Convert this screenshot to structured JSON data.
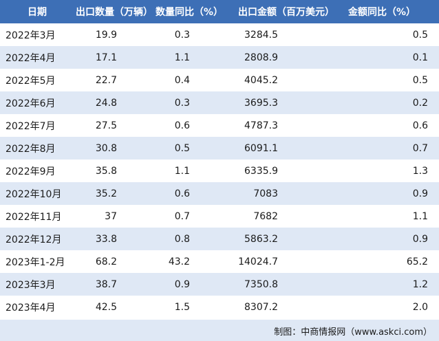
{
  "header": [
    "日期",
    "出口数量（万辆）",
    "数量同比（%）",
    "出口金额（百万美元）",
    "金额同比（%）"
  ],
  "rows": [
    [
      "2022年3月",
      "19.9",
      "0.3",
      "3284.5",
      "0.5"
    ],
    [
      "2022年4月",
      "17.1",
      "1.1",
      "2808.9",
      "0.1"
    ],
    [
      "2022年5月",
      "22.7",
      "0.4",
      "4045.2",
      "0.5"
    ],
    [
      "2022年6月",
      "24.8",
      "0.3",
      "3695.3",
      "0.2"
    ],
    [
      "2022年7月",
      "27.5",
      "0.6",
      "4787.3",
      "0.6"
    ],
    [
      "2022年8月",
      "30.8",
      "0.5",
      "6091.1",
      "0.7"
    ],
    [
      "2022年9月",
      "35.8",
      "1.1",
      "6335.9",
      "1.3"
    ],
    [
      "2022年10月",
      "35.2",
      "0.6",
      "7083",
      "0.9"
    ],
    [
      "2022年11月",
      "37",
      "0.7",
      "7682",
      "1.1"
    ],
    [
      "2022年12月",
      "33.8",
      "0.8",
      "5863.2",
      "0.9"
    ],
    [
      "2023年1-2月",
      "68.2",
      "43.2",
      "14024.7",
      "65.2"
    ],
    [
      "2023年3月",
      "38.7",
      "0.9",
      "7350.8",
      "1.2"
    ],
    [
      "2023年4月",
      "42.5",
      "1.5",
      "8307.2",
      "2.0"
    ]
  ],
  "footer": "制图：中商情报网（www.askci.com）"
}
